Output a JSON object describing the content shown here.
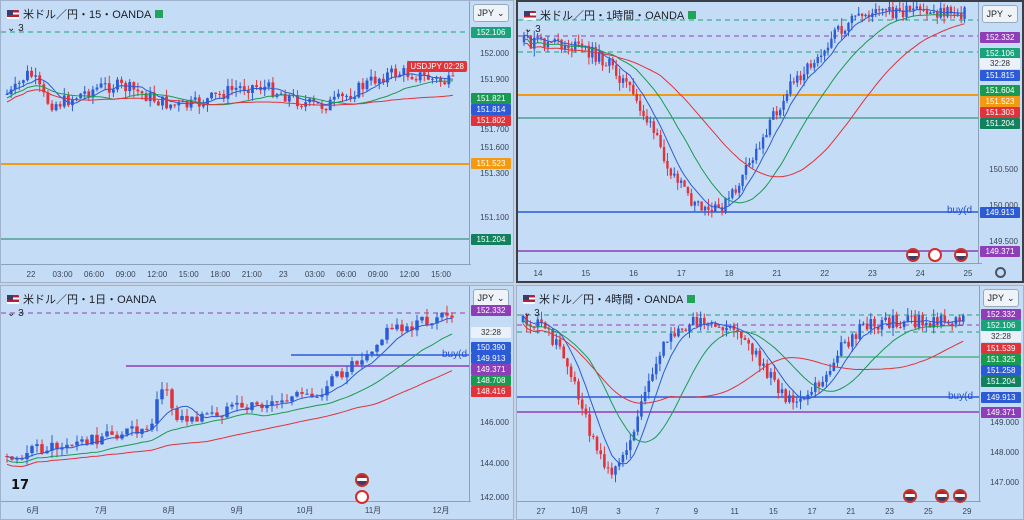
{
  "panels": [
    {
      "id": "p15",
      "title": "米ドル／円・15・OANDA",
      "indicator": "3",
      "currency": "JPY",
      "symbol_tag": "USDJPY",
      "countdown": "02:28",
      "price_tags": [
        {
          "label": "152.106",
          "color": "#1aa37a"
        },
        {
          "label": "151.821",
          "color": "#1a9a50"
        },
        {
          "label": "151.814",
          "color": "#2b5bd6"
        },
        {
          "label": "151.802",
          "color": "#e0333a"
        },
        {
          "label": "151.523",
          "color": "#f39a12"
        },
        {
          "label": "151.204",
          "color": "#13805e"
        }
      ],
      "y_ticks": [
        "152.000",
        "151.900",
        "151.700",
        "151.600",
        "151.300",
        "151.100"
      ],
      "x_ticks": [
        "22",
        "03:00",
        "06:00",
        "09:00",
        "12:00",
        "15:00",
        "18:00",
        "21:00",
        "23",
        "03:00",
        "06:00",
        "09:00",
        "12:00",
        "15:00"
      ]
    },
    {
      "id": "p1h",
      "title": "米ドル／円・1時間・OANDA",
      "indicator": "3",
      "currency": "JPY",
      "countdown": "32:28",
      "price_tags": [
        {
          "label": "152.332",
          "color": "#8e3fb8"
        },
        {
          "label": "152.106",
          "color": "#1aa37a"
        },
        {
          "label": "151.815",
          "color": "#2b5bd6"
        },
        {
          "label": "151.604",
          "color": "#1a9a50"
        },
        {
          "label": "151.523",
          "color": "#f39a12"
        },
        {
          "label": "151.303",
          "color": "#e0333a"
        },
        {
          "label": "151.204",
          "color": "#13805e"
        },
        {
          "label": "149.913",
          "color": "#2b5bd6"
        },
        {
          "label": "149.371",
          "color": "#8e3fb8"
        }
      ],
      "y_ticks": [
        "150.500",
        "150.000",
        "149.500"
      ],
      "x_ticks": [
        "14",
        "15",
        "16",
        "17",
        "18",
        "21",
        "22",
        "23",
        "24",
        "25"
      ],
      "buy_label": "buy(d"
    },
    {
      "id": "p1d",
      "title": "米ドル／円・1日・OANDA",
      "indicator": "3",
      "currency": "JPY",
      "countdown": "32:28",
      "price_tags": [
        {
          "label": "152.332",
          "color": "#8e3fb8"
        },
        {
          "label": "150.390",
          "color": "#2b5bd6"
        },
        {
          "label": "149.913",
          "color": "#2b5bd6"
        },
        {
          "label": "149.371",
          "color": "#8e3fb8"
        },
        {
          "label": "148.708",
          "color": "#1a9a50"
        },
        {
          "label": "148.416",
          "color": "#e0333a"
        }
      ],
      "y_ticks": [
        "146.000",
        "144.000",
        "142.000"
      ],
      "x_ticks": [
        "6月",
        "7月",
        "8月",
        "9月",
        "10月",
        "11月",
        "12月"
      ],
      "buy_label": "buy(d",
      "logo": "17"
    },
    {
      "id": "p4h",
      "title": "米ドル／円・4時間・OANDA",
      "indicator": "3",
      "currency": "JPY",
      "countdown": "32:28",
      "price_tags": [
        {
          "label": "152.332",
          "color": "#8e3fb8"
        },
        {
          "label": "152.106",
          "color": "#1aa37a"
        },
        {
          "label": "151.539",
          "color": "#e0333a"
        },
        {
          "label": "151.325",
          "color": "#1a9a50"
        },
        {
          "label": "151.258",
          "color": "#2b5bd6"
        },
        {
          "label": "151.204",
          "color": "#13805e"
        },
        {
          "label": "149.913",
          "color": "#2b5bd6"
        },
        {
          "label": "149.371",
          "color": "#8e3fb8"
        }
      ],
      "y_ticks": [
        "149.000",
        "148.000",
        "147.000"
      ],
      "x_ticks": [
        "27",
        "10月",
        "3",
        "7",
        "9",
        "11",
        "15",
        "17",
        "21",
        "23",
        "25",
        "29"
      ],
      "buy_label": "buy(d"
    }
  ],
  "colors": {
    "up": "#2b5bd6",
    "down": "#e0333a",
    "ma_fast": "#2b5bd6",
    "ma_mid": "#1a9a50",
    "ma_slow": "#e0333a",
    "bg": "#c5dcf7"
  }
}
